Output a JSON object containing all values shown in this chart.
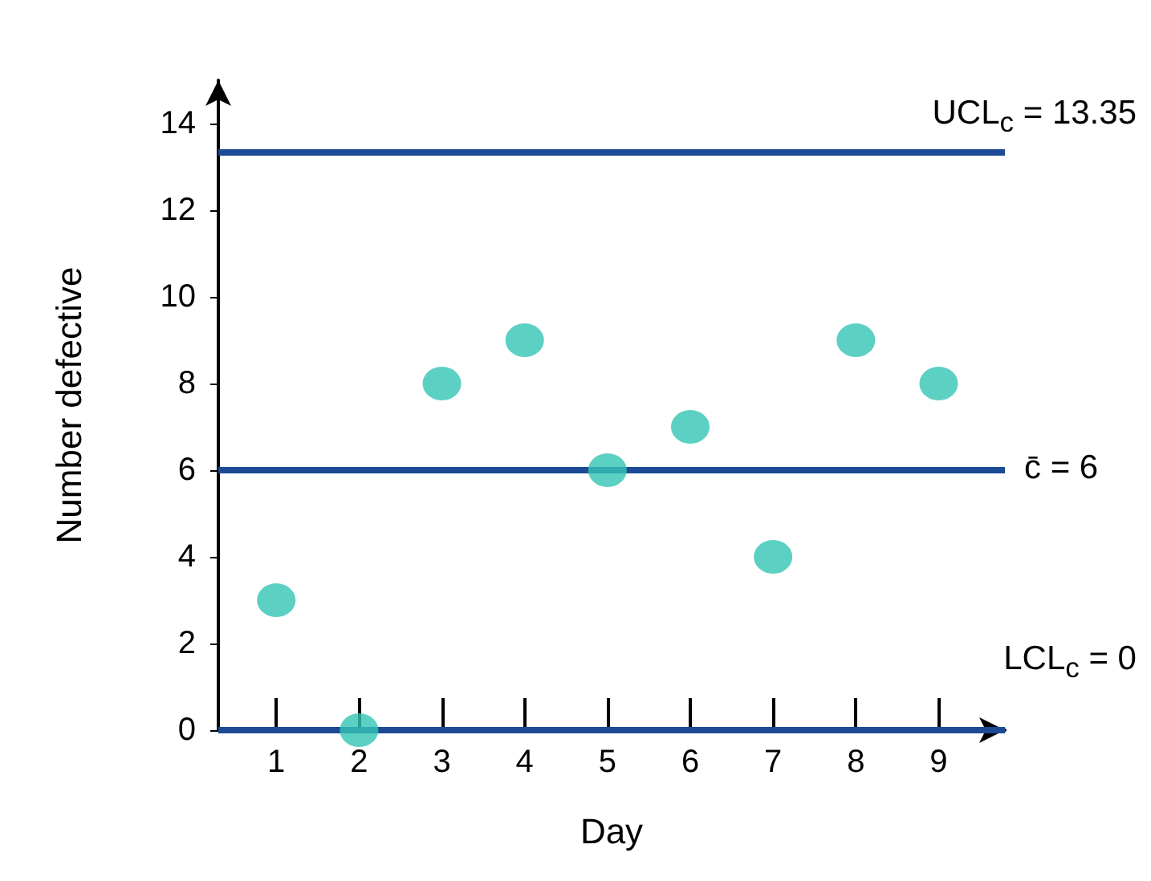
{
  "chart_data": {
    "type": "scatter",
    "xlabel": "Day",
    "ylabel": "Number defective",
    "x": [
      1,
      2,
      3,
      4,
      5,
      6,
      7,
      8,
      9
    ],
    "series": [
      {
        "color": "#33c4b4",
        "values": [
          3,
          0,
          8,
          9,
          6,
          7,
          4,
          9,
          8
        ]
      }
    ],
    "xlim": [
      0.3,
      9.8
    ],
    "xticks": [
      1,
      2,
      3,
      4,
      5,
      6,
      7,
      8,
      9
    ],
    "ylim": [
      0,
      15
    ],
    "yticks": [
      0,
      2,
      4,
      6,
      8,
      10,
      12,
      14
    ],
    "ref_lines": [
      {
        "axis": "y",
        "value": 13.35,
        "label": "UCL$_{c}$ = 13.35",
        "color": "#1c4a94"
      },
      {
        "axis": "y",
        "value": 6,
        "label": "c̄ =  6",
        "color": "#1c4a94"
      },
      {
        "axis": "y",
        "value": 0,
        "label": "LCL$_{c}$ = 0",
        "color": "#1c4a94"
      }
    ],
    "marker": "circle",
    "grid": false
  }
}
